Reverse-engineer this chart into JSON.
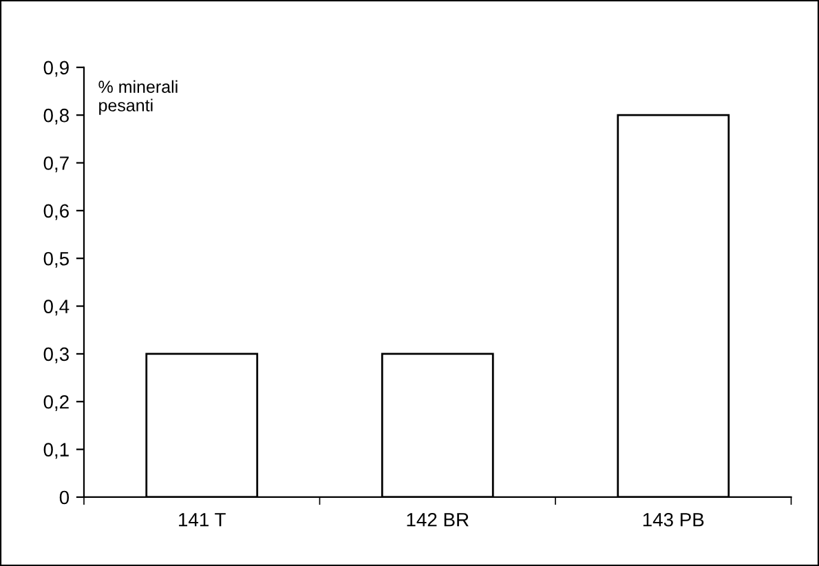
{
  "chart_data": {
    "type": "bar",
    "ylabel": "% minerali\npesanti",
    "categories": [
      "141 T",
      "142 BR",
      "143 PB"
    ],
    "values": [
      0.3,
      0.3,
      0.8
    ],
    "color": "#ffffff",
    "ylim": [
      0,
      0.9
    ],
    "yticks": [
      {
        "value": 0,
        "label": "0"
      },
      {
        "value": 0.1,
        "label": "0,1"
      },
      {
        "value": 0.2,
        "label": "0,2"
      },
      {
        "value": 0.3,
        "label": "0,3"
      },
      {
        "value": 0.4,
        "label": "0,4"
      },
      {
        "value": 0.5,
        "label": "0,5"
      },
      {
        "value": 0.6,
        "label": "0,6"
      },
      {
        "value": 0.7,
        "label": "0,7"
      },
      {
        "value": 0.8,
        "label": "0,8"
      },
      {
        "value": 0.9,
        "label": "0,9"
      }
    ],
    "grid": false,
    "legend": false
  }
}
